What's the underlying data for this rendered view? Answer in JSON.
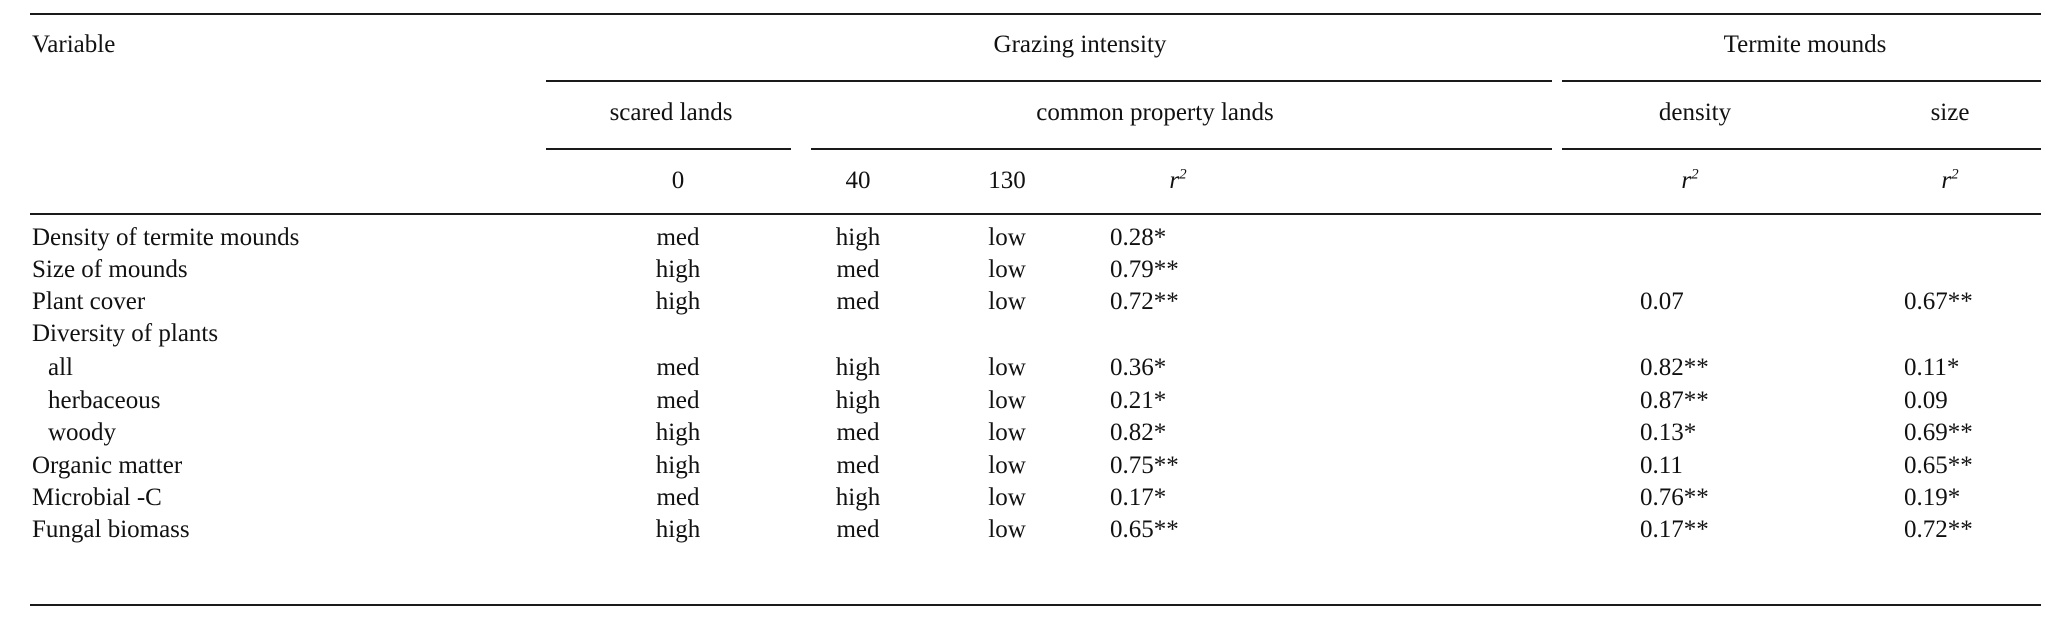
{
  "header": {
    "variable": "Variable",
    "grazing_intensity": "Grazing intensity",
    "termite_mounds": "Termite mounds",
    "scared_lands": "scared lands",
    "common_property_lands": "common property lands",
    "density": "density",
    "size": "size",
    "col_0": "0",
    "col_40": "40",
    "col_130": "130",
    "r2": "r",
    "r2_sup": "2"
  },
  "rows": [
    {
      "variable": "Density of termite mounds",
      "g0": "med",
      "g40": "high",
      "g130": "low",
      "r2": "0.28*",
      "density_r2": "",
      "size_r2": ""
    },
    {
      "variable": "Size of mounds",
      "g0": "high",
      "g40": "med",
      "g130": "low",
      "r2": "0.79**",
      "density_r2": "",
      "size_r2": ""
    },
    {
      "variable": "Plant cover",
      "g0": "high",
      "g40": "med",
      "g130": "low",
      "r2": "0.72**",
      "density_r2": "0.07",
      "size_r2": "0.67**"
    },
    {
      "variable": "Diversity of plants",
      "g0": "",
      "g40": "",
      "g130": "",
      "r2": "",
      "density_r2": "",
      "size_r2": ""
    },
    {
      "variable": "all",
      "g0": "med",
      "g40": "high",
      "g130": "low",
      "r2": "0.36*",
      "density_r2": "0.82**",
      "size_r2": "0.11*"
    },
    {
      "variable": "herbaceous",
      "g0": "med",
      "g40": "high",
      "g130": "low",
      "r2": "0.21*",
      "density_r2": "0.87**",
      "size_r2": "0.09"
    },
    {
      "variable": "woody",
      "g0": "high",
      "g40": "med",
      "g130": "low",
      "r2": "0.82*",
      "density_r2": "0.13*",
      "size_r2": "0.69**"
    },
    {
      "variable": "Organic matter",
      "g0": "high",
      "g40": "med",
      "g130": "low",
      "r2": "0.75**",
      "density_r2": "0.11",
      "size_r2": "0.65**"
    },
    {
      "variable": "Microbial -C",
      "g0": "med",
      "g40": "high",
      "g130": "low",
      "r2": "0.17*",
      "density_r2": "0.76**",
      "size_r2": "0.19*"
    },
    {
      "variable": "Fungal biomass",
      "g0": "high",
      "g40": "med",
      "g130": "low",
      "r2": "0.65**",
      "density_r2": "0.17**",
      "size_r2": "0.72**"
    }
  ]
}
